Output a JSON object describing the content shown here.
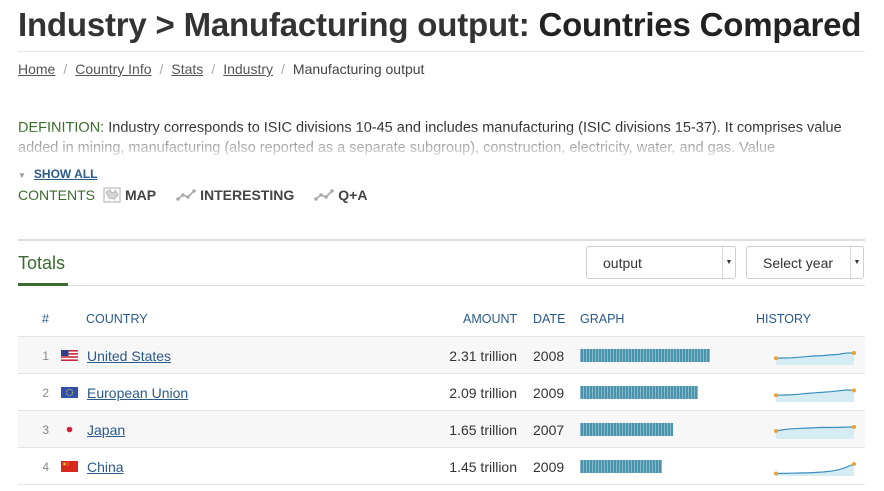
{
  "title": {
    "prefix": "Industry > Manufacturing output: ",
    "bold": "Countries Compared"
  },
  "breadcrumb": {
    "home": "Home",
    "country_info": "Country Info",
    "stats": "Stats",
    "industry": "Industry",
    "current": "Manufacturing output"
  },
  "definition": {
    "label": "DEFINITION:",
    "text": " Industry corresponds to ISIC divisions 10-45 and includes manufacturing (ISIC divisions 15-37). It comprises value added in mining, manufacturing (also reported as a separate subgroup), construction, electricity, water, and gas. Value"
  },
  "show_all": "SHOW ALL",
  "contents": {
    "label": "CONTENTS",
    "map": "MAP",
    "interesting": "INTERESTING",
    "qa": "Q+A"
  },
  "totals": "Totals",
  "selects": {
    "measure": "output",
    "year": "Select year"
  },
  "table": {
    "headers": {
      "rank": "#",
      "country": "COUNTRY",
      "amount": "AMOUNT",
      "date": "DATE",
      "graph": "GRAPH",
      "history": "HISTORY"
    },
    "max_value": 2.31,
    "rows": [
      {
        "rank": "1",
        "country": "United States",
        "flag": "us-flag",
        "amount": "2.31 trillion",
        "date": "2008",
        "value": 2.31,
        "history": [
          1.3,
          1.35,
          1.38,
          1.5,
          1.62,
          1.75,
          1.8,
          1.95,
          2.05,
          2.3,
          2.31
        ]
      },
      {
        "rank": "2",
        "country": "European Union",
        "flag": "eu-flag",
        "amount": "2.09 trillion",
        "date": "2009",
        "value": 2.09,
        "history": [
          1.2,
          1.25,
          1.3,
          1.4,
          1.55,
          1.65,
          1.75,
          1.85,
          2.0,
          2.15,
          2.09
        ]
      },
      {
        "rank": "3",
        "country": "Japan",
        "flag": "japan-flag",
        "amount": "1.65 trillion",
        "date": "2007",
        "value": 1.65,
        "history": [
          1.1,
          1.3,
          1.4,
          1.45,
          1.5,
          1.55,
          1.6,
          1.58,
          1.6,
          1.63,
          1.65
        ]
      },
      {
        "rank": "4",
        "country": "China",
        "flag": "china-flag",
        "amount": "1.45 trillion",
        "date": "2009",
        "value": 1.45,
        "history": [
          0.3,
          0.32,
          0.34,
          0.36,
          0.38,
          0.42,
          0.48,
          0.58,
          0.75,
          1.05,
          1.45
        ]
      }
    ]
  },
  "colors": {
    "accent_green": "#3b6b2d",
    "link_blue": "#2a5a8a",
    "bar_blue": "#4a93ac",
    "spark_line": "#3a8fc0",
    "spark_dot": "#f0a030"
  }
}
